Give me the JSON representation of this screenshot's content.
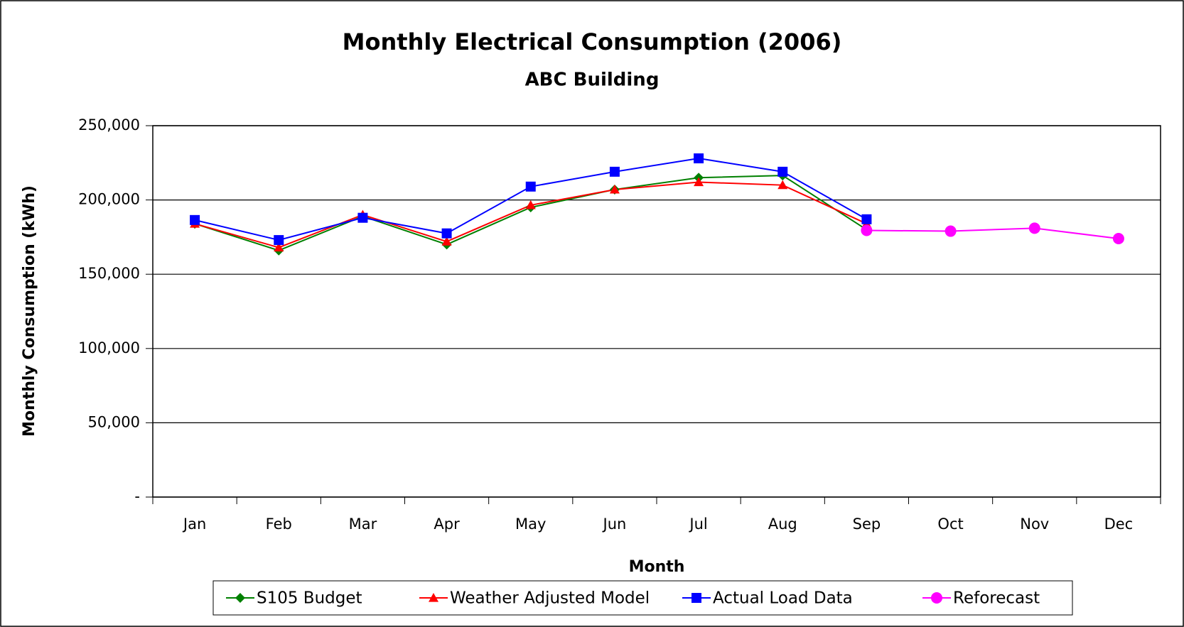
{
  "chart_data": {
    "type": "line",
    "title": "Monthly Electrical Consumption (2006)",
    "subtitle": "ABC Building",
    "x_label": "Month",
    "y_label": "Monthly Consumption (kWh)",
    "categories": [
      "Jan",
      "Feb",
      "Mar",
      "Apr",
      "May",
      "Jun",
      "Jul",
      "Aug",
      "Sep",
      "Oct",
      "Nov",
      "Dec"
    ],
    "series": [
      {
        "name": "S105 Budget",
        "color": "#008000",
        "marker": "diamond",
        "values": [
          184000,
          166000,
          189000,
          170000,
          195000,
          207000,
          215000,
          216500,
          180000,
          null,
          null,
          null
        ]
      },
      {
        "name": "Weather Adjusted Model",
        "color": "#ff0000",
        "marker": "triangle",
        "values": [
          184000,
          168000,
          190000,
          172000,
          196500,
          207000,
          212000,
          210000,
          184000,
          null,
          null,
          null
        ]
      },
      {
        "name": "Actual Load Data",
        "color": "#0000ff",
        "marker": "square",
        "values": [
          186500,
          173000,
          188000,
          177500,
          209000,
          219000,
          228000,
          219000,
          187000,
          null,
          null,
          null
        ]
      },
      {
        "name": "Reforecast",
        "color": "#ff00ff",
        "marker": "circle",
        "values": [
          null,
          null,
          null,
          null,
          null,
          null,
          null,
          null,
          179500,
          179000,
          181000,
          174000
        ]
      }
    ],
    "ylim": [
      0,
      250000
    ],
    "yticks": [
      {
        "value": 0,
        "label": "-"
      },
      {
        "value": 50000,
        "label": "50,000"
      },
      {
        "value": 100000,
        "label": "100,000"
      },
      {
        "value": 150000,
        "label": "150,000"
      },
      {
        "value": 200000,
        "label": "200,000"
      },
      {
        "value": 250000,
        "label": "250,000"
      }
    ],
    "grid": true,
    "legend": "bottom"
  }
}
